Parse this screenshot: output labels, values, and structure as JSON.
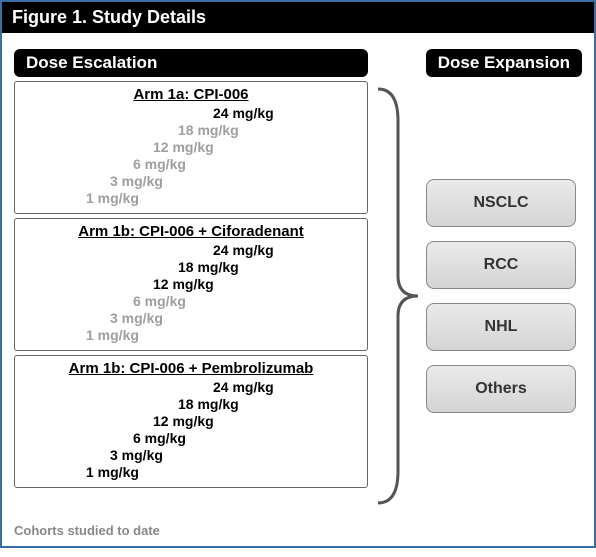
{
  "figure_title": "Figure 1. Study Details",
  "headers": {
    "escalation": "Dose Escalation",
    "expansion": "Dose Expansion"
  },
  "arms": [
    {
      "title": "Arm 1a: CPI-006",
      "doses": [
        {
          "label": "24 mg/kg",
          "active": true,
          "indent": 190
        },
        {
          "label": "18 mg/kg",
          "active": false,
          "indent": 155
        },
        {
          "label": "12 mg/kg",
          "active": false,
          "indent": 130
        },
        {
          "label": "6 mg/kg",
          "active": false,
          "indent": 110
        },
        {
          "label": "3 mg/kg",
          "active": false,
          "indent": 87
        },
        {
          "label": "1 mg/kg",
          "active": false,
          "indent": 63
        }
      ]
    },
    {
      "title": "Arm 1b: CPI-006 + Ciforadenant",
      "doses": [
        {
          "label": "24 mg/kg",
          "active": true,
          "indent": 190
        },
        {
          "label": "18 mg/kg",
          "active": true,
          "indent": 155
        },
        {
          "label": "12 mg/kg",
          "active": true,
          "indent": 130
        },
        {
          "label": "6 mg/kg",
          "active": false,
          "indent": 110
        },
        {
          "label": "3 mg/kg",
          "active": false,
          "indent": 87
        },
        {
          "label": "1 mg/kg",
          "active": false,
          "indent": 63
        }
      ]
    },
    {
      "title": "Arm 1b: CPI-006 + Pembrolizumab",
      "doses": [
        {
          "label": "24 mg/kg",
          "active": true,
          "indent": 190
        },
        {
          "label": "18 mg/kg",
          "active": true,
          "indent": 155
        },
        {
          "label": "12 mg/kg",
          "active": true,
          "indent": 130
        },
        {
          "label": "6 mg/kg",
          "active": true,
          "indent": 110
        },
        {
          "label": "3 mg/kg",
          "active": true,
          "indent": 87
        },
        {
          "label": "1 mg/kg",
          "active": true,
          "indent": 63
        }
      ]
    }
  ],
  "expansion_boxes": [
    "NSCLC",
    "RCC",
    "NHL",
    "Others"
  ],
  "footnote": "Cohorts studied to date",
  "colors": {
    "border": "#3a6ea5",
    "inactive_text": "#9e9e9e",
    "box_border": "#888888",
    "box_bg_top": "#eaeaea",
    "box_bg_bottom": "#d4d4d4",
    "brace_stroke": "#555555"
  },
  "layout": {
    "figure_width": 596,
    "figure_height": 557,
    "escalation_col_width": 354,
    "brace_width": 58,
    "arm_box_gap": 4,
    "expansion_box_gap": 14,
    "dose_line_height": 17,
    "title_fontsize": 18,
    "header_fontsize": 17,
    "arm_title_fontsize": 15,
    "dose_fontsize": 14,
    "exp_fontsize": 16,
    "footnote_fontsize": 13
  }
}
